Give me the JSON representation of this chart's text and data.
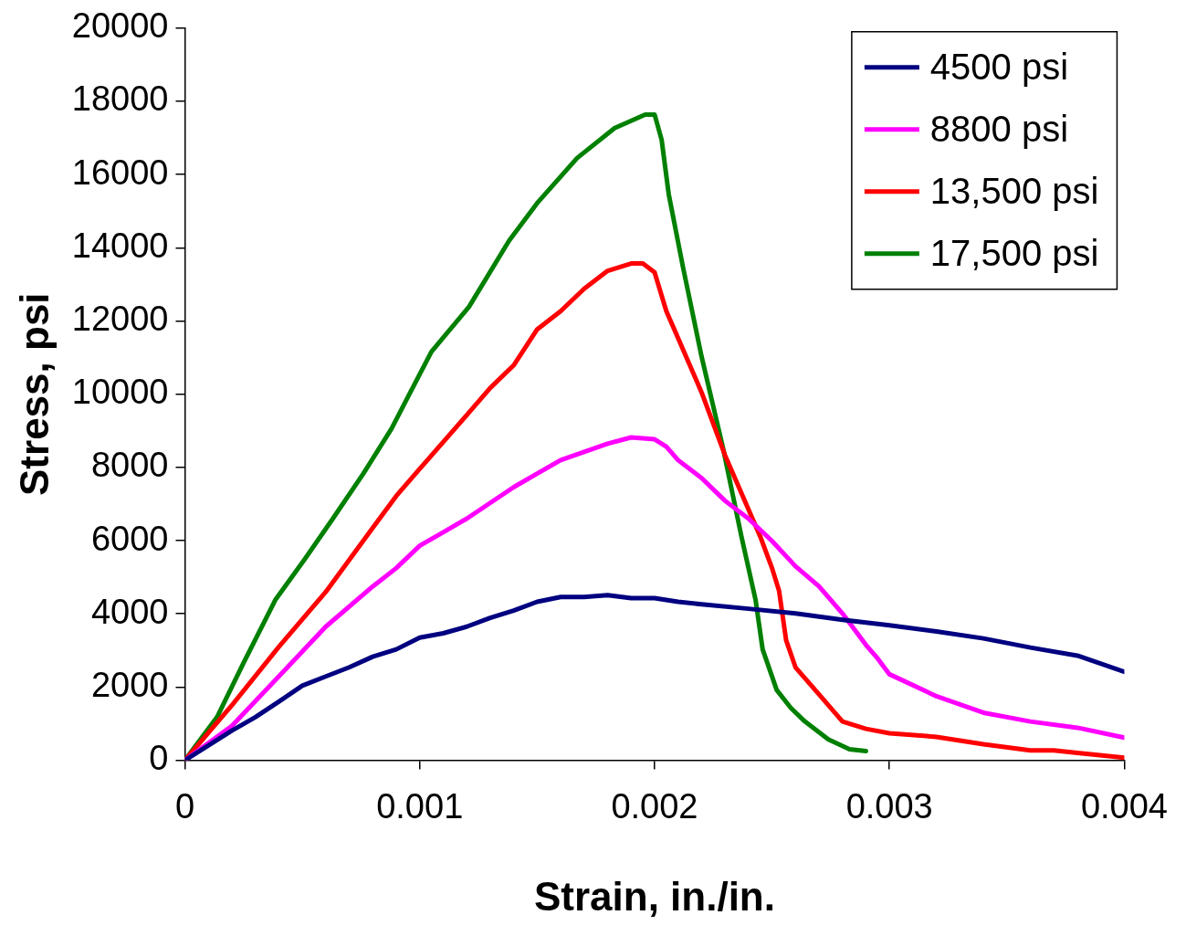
{
  "chart_data": {
    "type": "line",
    "xlabel": "Strain, in./in.",
    "ylabel": "Stress, psi",
    "xlim": [
      0,
      0.004
    ],
    "ylim": [
      0,
      20000
    ],
    "xticks": [
      0,
      0.001,
      0.002,
      0.003,
      0.004
    ],
    "yticks": [
      0,
      2000,
      4000,
      6000,
      8000,
      10000,
      12000,
      14000,
      16000,
      18000,
      20000
    ],
    "grid": false,
    "legend": "top right",
    "marker": "none",
    "line_style": "solid",
    "series": [
      {
        "name": "4500 psi",
        "color": "#000080",
        "x": [
          0,
          0.0002,
          0.0003,
          0.0004,
          0.0005,
          0.0006,
          0.0007,
          0.0008,
          0.0009,
          0.001,
          0.0011,
          0.0012,
          0.0013,
          0.0014,
          0.0015,
          0.0016,
          0.0017,
          0.0018,
          0.0019,
          0.002,
          0.0021,
          0.0022,
          0.0024,
          0.0026,
          0.0028,
          0.003,
          0.0032,
          0.0034,
          0.0036,
          0.0038,
          0.004
        ],
        "values": [
          0,
          810,
          1180,
          1600,
          2040,
          2290,
          2540,
          2830,
          3030,
          3350,
          3470,
          3650,
          3890,
          4090,
          4330,
          4460,
          4460,
          4510,
          4430,
          4430,
          4330,
          4260,
          4140,
          4010,
          3840,
          3690,
          3520,
          3330,
          3080,
          2860,
          2420
        ]
      },
      {
        "name": "8800 psi",
        "color": "#ff00ff",
        "x": [
          0,
          0.0002,
          0.0004,
          0.0006,
          0.0008,
          0.0009,
          0.001,
          0.0011,
          0.0012,
          0.0014,
          0.0015,
          0.0016,
          0.0018,
          0.0019,
          0.002,
          0.00205,
          0.0021,
          0.0022,
          0.0023,
          0.0024,
          0.0025,
          0.0026,
          0.0027,
          0.0028,
          0.0029,
          0.00295,
          0.003,
          0.0032,
          0.0034,
          0.0036,
          0.0038,
          0.004
        ],
        "values": [
          0,
          940,
          2290,
          3650,
          4750,
          5250,
          5860,
          6230,
          6600,
          7460,
          7830,
          8200,
          8650,
          8820,
          8770,
          8570,
          8200,
          7710,
          7090,
          6600,
          5990,
          5300,
          4750,
          4010,
          3150,
          2780,
          2350,
          1750,
          1300,
          1060,
          890,
          620
        ]
      },
      {
        "name": "13,500 psi",
        "color": "#ff0000",
        "x": [
          0,
          0.0002,
          0.0004,
          0.0006,
          0.0008,
          0.0009,
          0.001,
          0.0012,
          0.0013,
          0.0014,
          0.0015,
          0.0016,
          0.0017,
          0.0018,
          0.0019,
          0.00195,
          0.002,
          0.00205,
          0.0021,
          0.0022,
          0.0023,
          0.0024,
          0.00245,
          0.0025,
          0.00253,
          0.00256,
          0.0026,
          0.0027,
          0.0028,
          0.0029,
          0.003,
          0.0032,
          0.0034,
          0.0036,
          0.0037,
          0.0038,
          0.004
        ],
        "values": [
          0,
          1500,
          3100,
          4600,
          6350,
          7220,
          7960,
          9430,
          10170,
          10790,
          11770,
          12270,
          12880,
          13370,
          13570,
          13570,
          13330,
          12270,
          11530,
          10050,
          8330,
          6850,
          6110,
          5250,
          4630,
          3280,
          2540,
          1800,
          1060,
          860,
          740,
          640,
          440,
          270,
          270,
          200,
          70
        ]
      },
      {
        "name": "17,500 psi",
        "color": "#008000",
        "x": [
          0,
          0.000137,
          0.00025,
          0.000385,
          0.00051,
          0.00063,
          0.00076,
          0.00088,
          0.00096,
          0.00105,
          0.00121,
          0.00138,
          0.0015,
          0.00167,
          0.00183,
          0.00196,
          0.002,
          0.00203,
          0.00206,
          0.00212,
          0.0022,
          0.00229,
          0.00237,
          0.00243,
          0.00246,
          0.00252,
          0.00258,
          0.00264,
          0.00274,
          0.00283,
          0.0029
        ],
        "values": [
          0,
          1180,
          2660,
          4380,
          5490,
          6600,
          7830,
          9060,
          10050,
          11160,
          12390,
          14190,
          15220,
          16450,
          17270,
          17640,
          17640,
          16950,
          15470,
          13500,
          11030,
          8570,
          6110,
          4380,
          3030,
          1920,
          1430,
          1060,
          570,
          300,
          250
        ]
      }
    ]
  }
}
